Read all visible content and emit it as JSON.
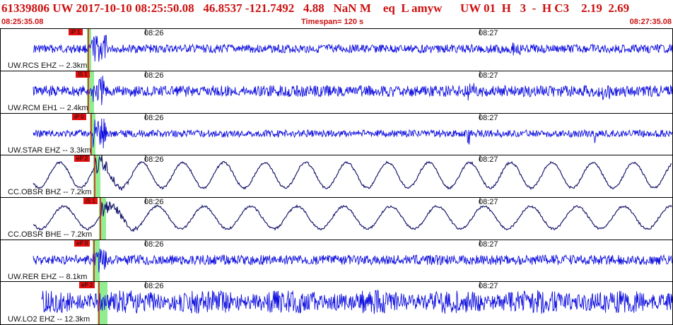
{
  "header": {
    "title": "61339806 UW 2017-10-10 08:25:50.08   46.8537 -121.7492   4.88   NaN M    eq  L amyw      UW 01  H   3  -  H C3    2.19  2.69",
    "start_time": "08:25:35.08",
    "timespan": "Timespan= 120 s",
    "end_time": "08:27:35.08"
  },
  "time_ticks": [
    "08:26",
    "08:27"
  ],
  "colors": {
    "trace_blue": "#1010e0",
    "trace_navy": "#1a1a6e",
    "pick_red": "#e01010",
    "pick_green": "#90ee90",
    "header_red": "#cc1010"
  },
  "channels": [
    {
      "label": "UW.RCS EHZ -- 2.3km",
      "pick": "iP 1",
      "trace": "blue-noise"
    },
    {
      "label": "UW.RCM EH1 -- 2.4km",
      "pick": "iS 1",
      "trace": "blue-noise"
    },
    {
      "label": "UW.STAR EHZ -- 3.3km",
      "pick": "iP 0",
      "trace": "blue-noise"
    },
    {
      "label": "CC.OBSR BHZ -- 7.2km",
      "pick": "eP 2",
      "trace": "navy-wave"
    },
    {
      "label": "CC.OBSR BHE -- 7.2km",
      "pick": "iS 1",
      "trace": "navy-wave"
    },
    {
      "label": "UW.RER EHZ -- 8.1km",
      "pick": "eP 0",
      "trace": "blue-noise"
    },
    {
      "label": "UW.LO2 EHZ -- 12.3km",
      "pick": "eP 2",
      "trace": "blue-heavy"
    }
  ]
}
